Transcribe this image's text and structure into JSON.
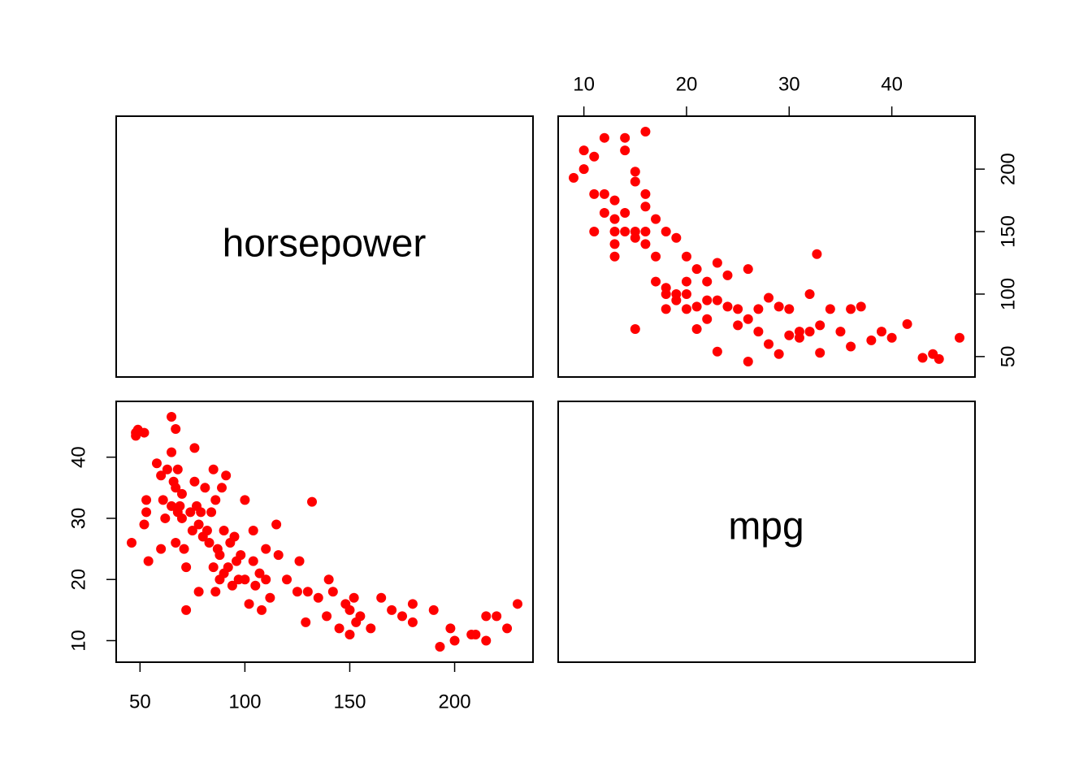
{
  "colors": {
    "points": "#ff0000",
    "frame": "#000000",
    "background": "#ffffff"
  },
  "chart_data": {
    "type": "scatter",
    "kind": "pairs-matrix",
    "variables": [
      "horsepower",
      "mpg"
    ],
    "axes": {
      "horsepower": {
        "range": [
          46,
          230
        ],
        "ticks": [
          50,
          100,
          150,
          200
        ]
      },
      "mpg": {
        "range": [
          9,
          46.6
        ],
        "ticks": [
          10,
          20,
          30,
          40
        ]
      }
    },
    "series": [
      {
        "x_variable": "horsepower",
        "y_variable": "mpg",
        "points": [
          [
            46,
            26
          ],
          [
            48,
            43.5
          ],
          [
            48,
            44
          ],
          [
            49,
            44.5
          ],
          [
            52,
            29
          ],
          [
            52,
            44
          ],
          [
            53,
            31
          ],
          [
            53,
            33
          ],
          [
            54,
            23
          ],
          [
            58,
            39
          ],
          [
            60,
            37
          ],
          [
            60,
            25
          ],
          [
            61,
            33
          ],
          [
            62,
            30
          ],
          [
            63,
            38
          ],
          [
            65,
            46.6
          ],
          [
            65,
            40.8
          ],
          [
            65,
            32
          ],
          [
            66,
            36
          ],
          [
            67,
            44.6
          ],
          [
            67,
            35
          ],
          [
            67,
            26
          ],
          [
            68,
            31
          ],
          [
            68,
            38
          ],
          [
            69,
            32
          ],
          [
            70,
            34
          ],
          [
            70,
            30
          ],
          [
            71,
            25
          ],
          [
            72,
            15
          ],
          [
            72,
            22
          ],
          [
            74,
            31
          ],
          [
            75,
            28
          ],
          [
            76,
            41.5
          ],
          [
            76,
            36
          ],
          [
            77,
            32
          ],
          [
            78,
            18
          ],
          [
            78,
            29
          ],
          [
            79,
            31
          ],
          [
            80,
            27
          ],
          [
            81,
            35
          ],
          [
            82,
            28
          ],
          [
            83,
            26
          ],
          [
            84,
            31
          ],
          [
            85,
            38
          ],
          [
            85,
            22
          ],
          [
            86,
            33
          ],
          [
            86,
            18
          ],
          [
            87,
            25
          ],
          [
            88,
            24
          ],
          [
            88,
            20
          ],
          [
            89,
            35
          ],
          [
            90,
            28
          ],
          [
            90,
            21
          ],
          [
            91,
            37
          ],
          [
            92,
            22
          ],
          [
            93,
            26
          ],
          [
            94,
            19
          ],
          [
            95,
            27
          ],
          [
            96,
            23
          ],
          [
            97,
            20
          ],
          [
            98,
            24
          ],
          [
            100,
            33
          ],
          [
            100,
            20
          ],
          [
            102,
            16
          ],
          [
            104,
            28
          ],
          [
            104,
            23
          ],
          [
            105,
            19
          ],
          [
            107,
            21
          ],
          [
            108,
            15
          ],
          [
            110,
            25
          ],
          [
            110,
            20
          ],
          [
            112,
            17
          ],
          [
            115,
            29
          ],
          [
            116,
            24
          ],
          [
            120,
            20
          ],
          [
            125,
            18
          ],
          [
            126,
            23
          ],
          [
            129,
            13
          ],
          [
            130,
            18
          ],
          [
            132,
            32.7
          ],
          [
            135,
            17
          ],
          [
            139,
            14
          ],
          [
            140,
            20
          ],
          [
            142,
            18
          ],
          [
            145,
            12
          ],
          [
            148,
            16
          ],
          [
            150,
            15
          ],
          [
            150,
            11
          ],
          [
            152,
            17
          ],
          [
            153,
            13
          ],
          [
            155,
            14
          ],
          [
            160,
            12
          ],
          [
            165,
            17
          ],
          [
            170,
            15
          ],
          [
            175,
            14
          ],
          [
            180,
            16
          ],
          [
            180,
            13
          ],
          [
            190,
            15
          ],
          [
            193,
            9
          ],
          [
            198,
            12
          ],
          [
            200,
            10
          ],
          [
            208,
            11
          ],
          [
            210,
            11
          ],
          [
            215,
            14
          ],
          [
            215,
            10
          ],
          [
            220,
            14
          ],
          [
            225,
            12
          ],
          [
            230,
            16
          ]
        ]
      },
      {
        "x_variable": "mpg",
        "y_variable": "horsepower",
        "points": [
          [
            9,
            193
          ],
          [
            10,
            215
          ],
          [
            10,
            200
          ],
          [
            11,
            210
          ],
          [
            11,
            180
          ],
          [
            11,
            150
          ],
          [
            12,
            225
          ],
          [
            12,
            165
          ],
          [
            12,
            180
          ],
          [
            13,
            175
          ],
          [
            13,
            160
          ],
          [
            13,
            150
          ],
          [
            13,
            140
          ],
          [
            13,
            130
          ],
          [
            14,
            225
          ],
          [
            14,
            215
          ],
          [
            14,
            165
          ],
          [
            14,
            150
          ],
          [
            15,
            198
          ],
          [
            15,
            190
          ],
          [
            15,
            150
          ],
          [
            15,
            145
          ],
          [
            15,
            72
          ],
          [
            16,
            230
          ],
          [
            16,
            180
          ],
          [
            16,
            170
          ],
          [
            16,
            150
          ],
          [
            16,
            140
          ],
          [
            17,
            160
          ],
          [
            17,
            130
          ],
          [
            17,
            110
          ],
          [
            18,
            150
          ],
          [
            18,
            105
          ],
          [
            18,
            100
          ],
          [
            18,
            88
          ],
          [
            19,
            145
          ],
          [
            19,
            100
          ],
          [
            19,
            95
          ],
          [
            20,
            130
          ],
          [
            20,
            110
          ],
          [
            20,
            100
          ],
          [
            20,
            88
          ],
          [
            21,
            120
          ],
          [
            21,
            90
          ],
          [
            21,
            72
          ],
          [
            22,
            110
          ],
          [
            22,
            95
          ],
          [
            22,
            80
          ],
          [
            23,
            125
          ],
          [
            23,
            95
          ],
          [
            23,
            54
          ],
          [
            24,
            115
          ],
          [
            24,
            90
          ],
          [
            25,
            88
          ],
          [
            25,
            75
          ],
          [
            26,
            120
          ],
          [
            26,
            80
          ],
          [
            26,
            46
          ],
          [
            27,
            88
          ],
          [
            27,
            70
          ],
          [
            28,
            97
          ],
          [
            28,
            60
          ],
          [
            29,
            90
          ],
          [
            29,
            52
          ],
          [
            30,
            88
          ],
          [
            30,
            67
          ],
          [
            31,
            70
          ],
          [
            31,
            65
          ],
          [
            32,
            100
          ],
          [
            32,
            70
          ],
          [
            32.7,
            132
          ],
          [
            33,
            75
          ],
          [
            33,
            53
          ],
          [
            34,
            88
          ],
          [
            35,
            70
          ],
          [
            36,
            88
          ],
          [
            36,
            58
          ],
          [
            37,
            90
          ],
          [
            38,
            63
          ],
          [
            39,
            70
          ],
          [
            40,
            65
          ],
          [
            41.5,
            76
          ],
          [
            43,
            49
          ],
          [
            44,
            52
          ],
          [
            44.6,
            48
          ],
          [
            46.6,
            65
          ]
        ]
      }
    ]
  }
}
